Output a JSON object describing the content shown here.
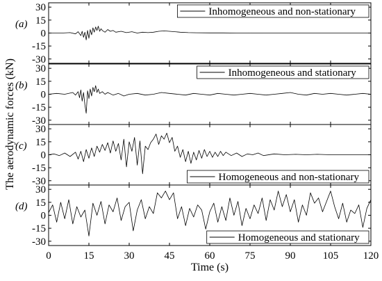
{
  "chart_data": {
    "type": "line",
    "xlabel": "Time (s)",
    "ylabel": "The aerodynamic forces (kN)",
    "xlim": [
      0,
      120
    ],
    "xticks": [
      0,
      15,
      30,
      45,
      60,
      75,
      90,
      105,
      120
    ],
    "ylim": [
      -35,
      35
    ],
    "yticks": [
      -30,
      -15,
      0,
      15,
      30
    ],
    "grid": false,
    "panels": [
      {
        "panel_label": "(a)",
        "legend": "Inhomogeneous and non-stationary",
        "legend_position": "top-right",
        "series": [
          {
            "x": [
              0,
              5,
              8,
              10,
              11,
              12,
              12.5,
              13,
              13.5,
              14,
              14.5,
              15,
              15.5,
              16,
              16.5,
              17,
              17.5,
              18,
              18.5,
              19,
              19.5,
              20,
              21,
              22,
              23,
              24,
              25,
              27,
              29,
              31,
              33,
              35,
              37,
              39,
              41,
              43,
              45,
              47,
              49,
              52,
              55,
              60,
              65,
              70,
              75,
              80,
              85,
              90,
              95,
              100,
              105,
              110,
              115,
              120
            ],
            "y": [
              0,
              0,
              0.5,
              -1,
              1.5,
              -3,
              2,
              -5,
              1,
              -8,
              3,
              -6,
              4,
              -2,
              6,
              1,
              7,
              3,
              8,
              2,
              5,
              3,
              1,
              4,
              2,
              3,
              1,
              2,
              0.5,
              1.5,
              0,
              1,
              0.5,
              1,
              2,
              2.5,
              2,
              1.5,
              1,
              0.5,
              0.3,
              0.2,
              0.2,
              0,
              0.1,
              0,
              0,
              0,
              0,
              0,
              0,
              0,
              0,
              0
            ]
          }
        ]
      },
      {
        "panel_label": "(b)",
        "legend": "Inhomogeneous and stationary",
        "legend_position": "top-right",
        "series": [
          {
            "x": [
              0,
              3,
              6,
              9,
              10,
              11,
              11.5,
              12,
              12.5,
              13,
              13.5,
              14,
              14.5,
              15,
              15.5,
              16,
              16.5,
              17,
              17.5,
              18,
              18.5,
              19,
              20,
              21,
              22,
              24,
              26,
              28,
              30,
              33,
              36,
              39,
              42,
              45,
              48,
              51,
              54,
              57,
              60,
              63,
              66,
              69,
              72,
              75,
              78,
              81,
              84,
              87,
              90,
              93,
              96,
              99,
              102,
              105,
              108,
              111,
              114,
              117,
              120
            ],
            "y": [
              0,
              1,
              0,
              2,
              -1,
              3,
              -4,
              5,
              -8,
              2,
              -12,
              -22,
              4,
              -5,
              6,
              -2,
              8,
              3,
              10,
              2,
              6,
              1,
              3,
              0,
              2,
              -1,
              1,
              -2,
              0,
              1,
              -1,
              0,
              2,
              1,
              0,
              -1,
              1,
              0,
              -1,
              1,
              0,
              -1,
              0,
              1,
              0,
              -1,
              0,
              1,
              2,
              0,
              -1,
              1,
              0,
              1,
              0,
              -1,
              0,
              1,
              0
            ]
          }
        ]
      },
      {
        "panel_label": "(c)",
        "legend": "Homogeneous and non-stationary",
        "legend_position": "bottom-right",
        "series": [
          {
            "x": [
              0,
              2,
              4,
              6,
              8,
              10,
              11,
              12,
              13,
              14,
              15,
              16,
              17,
              18,
              19,
              20,
              21,
              22,
              23,
              24,
              25,
              26,
              27,
              28,
              29,
              30,
              31,
              32,
              33,
              34,
              35,
              36,
              37,
              38,
              39,
              40,
              41,
              42,
              43,
              44,
              45,
              46,
              47,
              48,
              49,
              50,
              51,
              52,
              53,
              54,
              55,
              56,
              57,
              58,
              59,
              60,
              61,
              62,
              63,
              64,
              65,
              66,
              68,
              70,
              72,
              74,
              76,
              78,
              80,
              84,
              88,
              92,
              96,
              100,
              105,
              110,
              115,
              120
            ],
            "y": [
              0,
              1,
              -1,
              2,
              -2,
              3,
              -5,
              4,
              -8,
              6,
              -4,
              8,
              -2,
              10,
              3,
              12,
              5,
              14,
              2,
              16,
              4,
              13,
              -6,
              18,
              -14,
              15,
              4,
              20,
              -12,
              16,
              -22,
              10,
              6,
              14,
              18,
              24,
              12,
              22,
              18,
              25,
              14,
              20,
              4,
              10,
              -3,
              6,
              -8,
              4,
              -10,
              3,
              -6,
              5,
              -4,
              6,
              -2,
              4,
              -3,
              3,
              -2,
              4,
              -1,
              3,
              -1,
              2,
              -2,
              1,
              0,
              2,
              -1,
              1,
              0,
              0.5,
              0,
              0.5,
              0,
              0,
              0,
              0
            ]
          }
        ]
      },
      {
        "panel_label": "(d)",
        "legend": "Homogeneous and stationary",
        "legend_position": "bottom-right",
        "series": [
          {
            "x": [
              0,
              1.5,
              3,
              4.5,
              6,
              7.5,
              9,
              10.5,
              12,
              13.5,
              15,
              16.5,
              18,
              19.5,
              21,
              22.5,
              24,
              25.5,
              27,
              28.5,
              30,
              31.5,
              33,
              34.5,
              36,
              37.5,
              39,
              40.5,
              42,
              43.5,
              45,
              46.5,
              48,
              49.5,
              51,
              52.5,
              54,
              55.5,
              57,
              58.5,
              60,
              61.5,
              63,
              64.5,
              66,
              67.5,
              69,
              70.5,
              72,
              73.5,
              75,
              76.5,
              78,
              79.5,
              81,
              82.5,
              84,
              85.5,
              87,
              88.5,
              90,
              91.5,
              93,
              94.5,
              96,
              97.5,
              99,
              100.5,
              102,
              103.5,
              105,
              106.5,
              108,
              109.5,
              111,
              112.5,
              114,
              115.5,
              117,
              118.5,
              120
            ],
            "y": [
              3,
              12,
              -8,
              15,
              -4,
              18,
              -10,
              10,
              -2,
              6,
              -24,
              14,
              0,
              16,
              -10,
              12,
              4,
              20,
              -6,
              10,
              15,
              -18,
              6,
              18,
              -4,
              10,
              2,
              26,
              20,
              28,
              18,
              26,
              -4,
              10,
              -12,
              8,
              -2,
              12,
              6,
              -16,
              4,
              14,
              -8,
              10,
              -6,
              20,
              0,
              16,
              -12,
              8,
              -4,
              12,
              2,
              20,
              -6,
              18,
              6,
              28,
              10,
              24,
              4,
              18,
              -8,
              12,
              0,
              26,
              14,
              20,
              4,
              16,
              28,
              10,
              -4,
              14,
              -8,
              6,
              2,
              12,
              -14,
              8,
              18
            ]
          }
        ]
      }
    ]
  }
}
